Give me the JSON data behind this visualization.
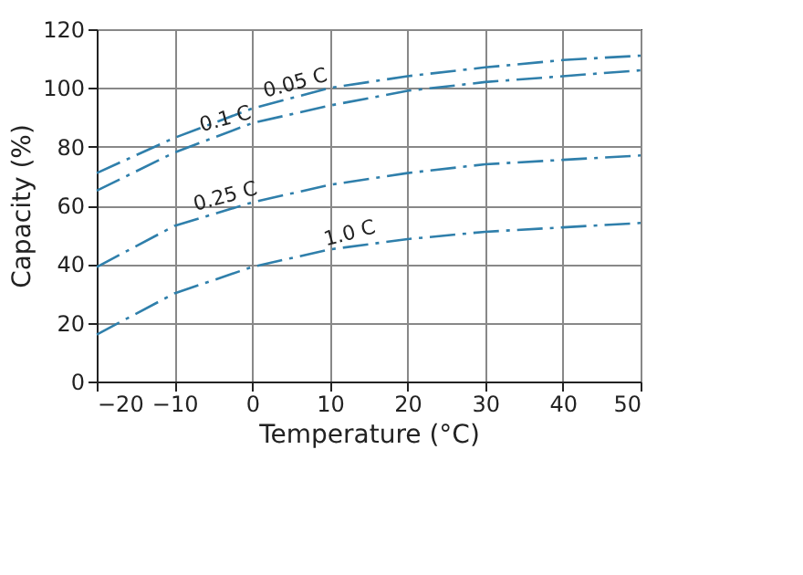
{
  "chart_data": {
    "type": "line",
    "xlabel": "Temperature (°C)",
    "ylabel": "Capacity (%)",
    "x": [
      -20,
      -10,
      0,
      10,
      20,
      30,
      40,
      50
    ],
    "series": [
      {
        "name": "0.05 C",
        "color": "#2f7fab",
        "values": [
          71,
          83,
          93,
          100,
          104,
          107,
          109.5,
          111
        ]
      },
      {
        "name": "0.1 C",
        "color": "#2f7fab",
        "values": [
          65,
          78,
          88,
          94,
          99,
          102,
          104,
          106
        ]
      },
      {
        "name": "0.25 C",
        "color": "#2f7fab",
        "values": [
          39,
          53,
          61,
          67,
          71,
          74,
          75.5,
          77
        ]
      },
      {
        "name": "1.0 C",
        "color": "#2f7fab",
        "values": [
          16,
          30,
          39,
          45,
          48.5,
          51,
          52.5,
          54
        ]
      }
    ],
    "xlim": [
      -20,
      50
    ],
    "xticks": [
      -20,
      -10,
      0,
      10,
      20,
      30,
      40,
      50
    ],
    "ylim": [
      0,
      120
    ],
    "yticks": [
      0,
      20,
      40,
      60,
      80,
      100,
      120
    ],
    "grid": true,
    "legend": false,
    "marker": "none",
    "line_style": "dashed"
  }
}
